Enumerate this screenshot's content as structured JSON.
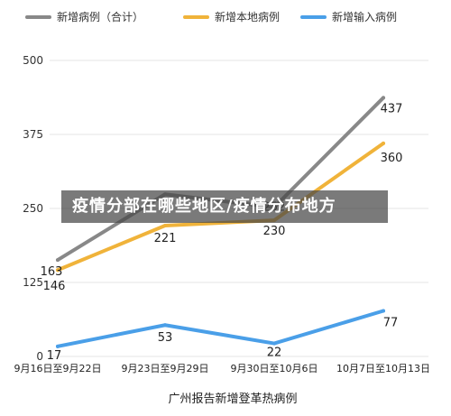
{
  "chart_data": {
    "type": "line",
    "categories": [
      "9月16日至9月22日",
      "9月23日至9月29日",
      "9月30日至10月6日",
      "10月7日至10月13日"
    ],
    "series": [
      {
        "name": "新增病例（合计）",
        "values": [
          163,
          274,
          252,
          437
        ],
        "color": "#888888"
      },
      {
        "name": "新增本地病例",
        "values": [
          146,
          221,
          230,
          360
        ],
        "color": "#F0B33A"
      },
      {
        "name": "新增输入病例",
        "values": [
          17,
          53,
          22,
          77
        ],
        "color": "#4A9FE8"
      }
    ],
    "data_labels": [
      {
        "series": 0,
        "index": 0,
        "text": "163"
      },
      {
        "series": 0,
        "index": 2,
        "text": "252"
      },
      {
        "series": 0,
        "index": 3,
        "text": "437"
      },
      {
        "series": 1,
        "index": 0,
        "text": "146"
      },
      {
        "series": 1,
        "index": 1,
        "text": "221"
      },
      {
        "series": 1,
        "index": 2,
        "text": "230"
      },
      {
        "series": 1,
        "index": 3,
        "text": "360"
      },
      {
        "series": 2,
        "index": 0,
        "text": "17"
      },
      {
        "series": 2,
        "index": 1,
        "text": "53"
      },
      {
        "series": 2,
        "index": 2,
        "text": "22"
      },
      {
        "series": 2,
        "index": 3,
        "text": "77"
      }
    ],
    "y_ticks": [
      0,
      125,
      250,
      375,
      500
    ],
    "ylim": [
      0,
      500
    ],
    "xlabel": "广州报告新增登革热病例",
    "ylabel": "",
    "title": "",
    "legend_position": "top",
    "grid": true
  },
  "overlay_banner": "疫情分部在哪些地区/疫情分布地方"
}
